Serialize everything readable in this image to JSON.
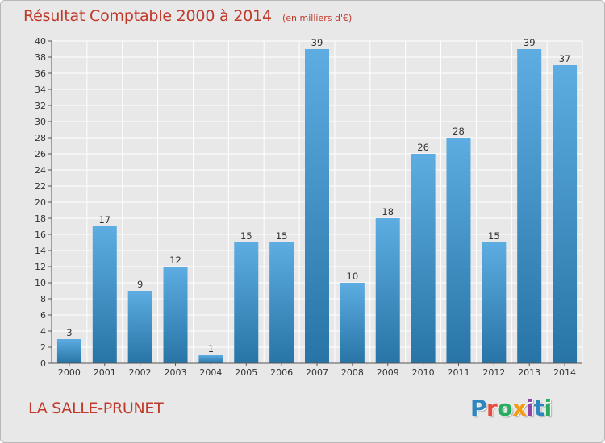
{
  "header": {
    "title": "Résultat Comptable 2000 à 2014",
    "subtitle": "(en milliers d'€)"
  },
  "footer": {
    "commune": "LA SALLE-PRUNET",
    "logo_letters": [
      "P",
      "r",
      "o",
      "x",
      "i",
      "t",
      "i"
    ],
    "logo_colors": [
      "#2e86c1",
      "#e74c3c",
      "#27ae60",
      "#f39c12",
      "#8e44ad",
      "#2e86c1",
      "#27ae60"
    ]
  },
  "colors": {
    "bar_light": "#5dade2",
    "bar_dark": "#2874a6",
    "grid": "#ffffff",
    "axis": "#555555"
  },
  "chart_data": {
    "type": "bar",
    "title": "Résultat Comptable 2000 à 2014",
    "subtitle": "(en milliers d'€)",
    "xlabel": "",
    "ylabel": "",
    "categories": [
      "2000",
      "2001",
      "2002",
      "2003",
      "2004",
      "2005",
      "2006",
      "2007",
      "2008",
      "2009",
      "2010",
      "2011",
      "2012",
      "2013",
      "2014"
    ],
    "values": [
      3,
      17,
      9,
      12,
      1,
      15,
      15,
      39,
      10,
      18,
      26,
      28,
      15,
      39,
      37
    ],
    "ylim": [
      0,
      40
    ],
    "yticks": [
      0,
      2,
      4,
      6,
      8,
      10,
      12,
      14,
      16,
      18,
      20,
      22,
      24,
      26,
      28,
      30,
      32,
      34,
      36,
      38,
      40
    ],
    "grid": true,
    "legend": "none"
  }
}
